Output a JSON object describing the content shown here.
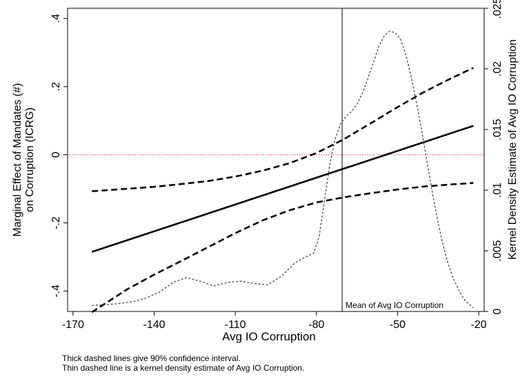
{
  "chart_data": {
    "type": "line",
    "title": "",
    "xlabel": "Avg IO Corruption",
    "ylabel_left": [
      "Marginal Effect of Mandates (#)",
      "on Corruption (ICRG)"
    ],
    "ylabel_right": "Kernel Density Estimate of Avg IO Corruption",
    "xlim": [
      -172,
      -18
    ],
    "ylim_left": [
      -0.46,
      0.43
    ],
    "ylim_right": [
      0,
      0.025
    ],
    "x_ticks": [
      -170,
      -140,
      -110,
      -80,
      -50,
      -20
    ],
    "x_tick_labels": [
      "-170",
      "-140",
      "-110",
      "-80",
      "-50",
      "-20"
    ],
    "y_left_ticks": [
      -0.4,
      -0.2,
      0,
      0.2,
      0.4
    ],
    "y_left_tick_labels": [
      "-.4",
      "-.2",
      "0",
      ".2",
      ".4"
    ],
    "y_right_ticks": [
      0,
      0.005,
      0.01,
      0.015,
      0.02,
      0.025
    ],
    "y_right_tick_labels": [
      "0",
      ".005",
      ".01",
      ".015",
      ".02",
      ".025"
    ],
    "mean_line": {
      "x": -70.5,
      "label": "Mean of Avg IO Corruption"
    },
    "zero_line": {
      "y": 0,
      "color": "#e8413c"
    },
    "series": [
      {
        "key": "marginal_effect",
        "axis": "left",
        "style": "solid-thick",
        "x": [
          -163,
          -22
        ],
        "y": [
          -0.285,
          0.085
        ]
      },
      {
        "key": "ci_upper",
        "axis": "left",
        "style": "dashed-thick",
        "x": [
          -163,
          -150,
          -140,
          -130,
          -120,
          -110,
          -100,
          -90,
          -80,
          -70,
          -60,
          -50,
          -40,
          -30,
          -22
        ],
        "y": [
          -0.107,
          -0.1,
          -0.094,
          -0.086,
          -0.077,
          -0.064,
          -0.047,
          -0.025,
          0.005,
          0.045,
          0.092,
          0.14,
          0.185,
          0.225,
          0.255
        ]
      },
      {
        "key": "ci_lower",
        "axis": "left",
        "style": "dashed-thick",
        "x": [
          -163,
          -150,
          -140,
          -130,
          -120,
          -110,
          -100,
          -90,
          -80,
          -70,
          -60,
          -50,
          -40,
          -30,
          -22
        ],
        "y": [
          -0.462,
          -0.395,
          -0.352,
          -0.312,
          -0.271,
          -0.23,
          -0.193,
          -0.163,
          -0.14,
          -0.125,
          -0.113,
          -0.102,
          -0.093,
          -0.087,
          -0.083
        ]
      },
      {
        "key": "kernel_density",
        "axis": "right",
        "style": "dashed-thin",
        "x": [
          -163,
          -155,
          -148,
          -143,
          -138,
          -133,
          -128,
          -123,
          -118,
          -113,
          -108,
          -103,
          -98,
          -93,
          -88,
          -84,
          -81,
          -79,
          -77,
          -75,
          -73,
          -71,
          -69,
          -67,
          -65,
          -63,
          -61,
          -59,
          -57,
          -55,
          -53,
          -51,
          -49,
          -47,
          -45,
          -43,
          -41,
          -39,
          -37,
          -35,
          -33,
          -31,
          -29,
          -27,
          -25,
          -23,
          -22
        ],
        "y": [
          0.0005,
          0.0006,
          0.0008,
          0.0011,
          0.0016,
          0.0024,
          0.0028,
          0.0025,
          0.0021,
          0.0024,
          0.0025,
          0.0023,
          0.0022,
          0.0029,
          0.004,
          0.0045,
          0.0048,
          0.0062,
          0.0092,
          0.0122,
          0.0143,
          0.0155,
          0.0161,
          0.0165,
          0.0171,
          0.018,
          0.0192,
          0.0205,
          0.0218,
          0.0227,
          0.0231,
          0.023,
          0.0225,
          0.0212,
          0.0194,
          0.0172,
          0.0148,
          0.0122,
          0.0096,
          0.0073,
          0.0053,
          0.0037,
          0.0025,
          0.0016,
          0.0009,
          0.0005,
          0.0003
        ]
      }
    ],
    "grid": false
  },
  "notes": {
    "line1": "Thick dashed lines give 90% confidence interval.",
    "line2": "Thin dashed line is a kernel density estimate of Avg IO Corruption."
  }
}
